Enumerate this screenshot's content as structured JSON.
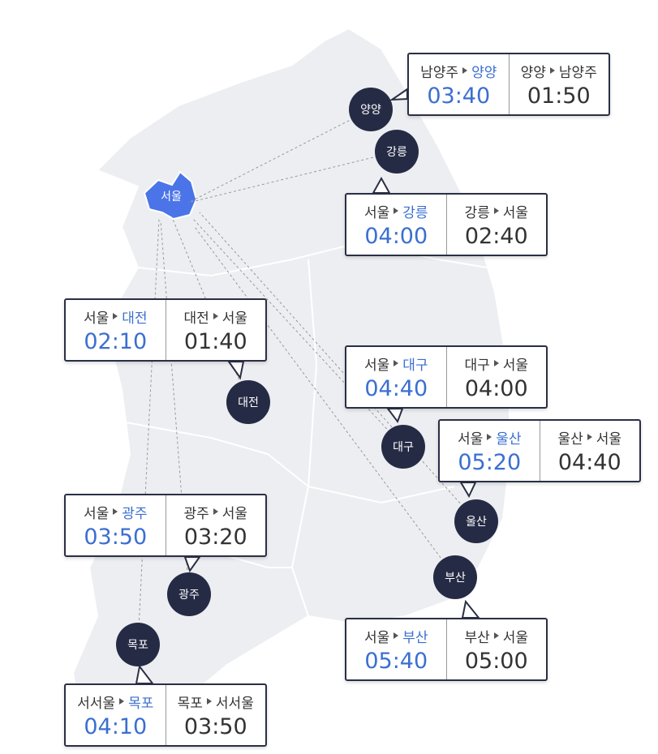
{
  "map": {
    "origin": "서울",
    "destinations": [
      {
        "city": "양양",
        "routes": [
          {
            "from": "남양주",
            "to": "양양",
            "time": "03:40"
          },
          {
            "from": "양양",
            "to": "남양주",
            "time": "01:50"
          }
        ]
      },
      {
        "city": "강릉",
        "routes": [
          {
            "from": "서울",
            "to": "강릉",
            "time": "04:00"
          },
          {
            "from": "강릉",
            "to": "서울",
            "time": "02:40"
          }
        ]
      },
      {
        "city": "대전",
        "routes": [
          {
            "from": "서울",
            "to": "대전",
            "time": "02:10"
          },
          {
            "from": "대전",
            "to": "서울",
            "time": "01:40"
          }
        ]
      },
      {
        "city": "대구",
        "routes": [
          {
            "from": "서울",
            "to": "대구",
            "time": "04:40"
          },
          {
            "from": "대구",
            "to": "서울",
            "time": "04:00"
          }
        ]
      },
      {
        "city": "울산",
        "routes": [
          {
            "from": "서울",
            "to": "울산",
            "time": "05:20"
          },
          {
            "from": "울산",
            "to": "서울",
            "time": "04:40"
          }
        ]
      },
      {
        "city": "광주",
        "routes": [
          {
            "from": "서울",
            "to": "광주",
            "time": "03:50"
          },
          {
            "from": "광주",
            "to": "서울",
            "time": "03:20"
          }
        ]
      },
      {
        "city": "부산",
        "routes": [
          {
            "from": "서울",
            "to": "부산",
            "time": "05:40"
          },
          {
            "from": "부산",
            "to": "서울",
            "time": "05:00"
          }
        ]
      },
      {
        "city": "목포",
        "routes": [
          {
            "from": "서서울",
            "to": "목포",
            "time": "04:10"
          },
          {
            "from": "목포",
            "to": "서서울",
            "time": "03:50"
          }
        ]
      }
    ]
  }
}
